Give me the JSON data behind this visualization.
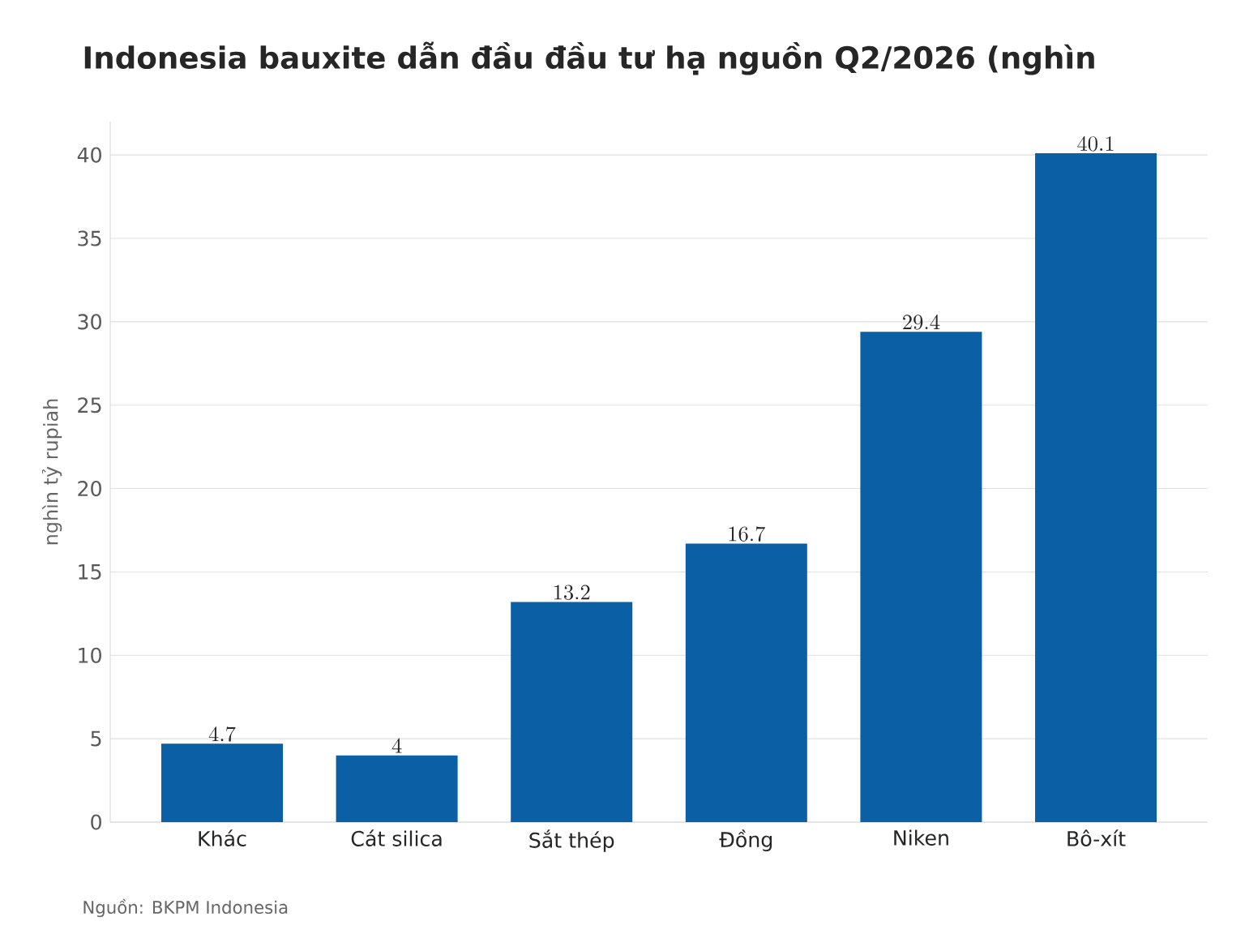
{
  "chart_data": {
    "type": "bar",
    "title": "Indonesia bauxite dẫn đầu đầu tư hạ nguồn Q2/2026 (nghìn",
    "ylabel": "nghìn tỷ rupiah",
    "categories": [
      "Khác",
      "Cát silica",
      "Sắt thép",
      "Đồng",
      "Niken",
      "Bô-xít"
    ],
    "values": [
      4.7,
      4,
      13.2,
      16.7,
      29.4,
      40.1
    ],
    "color": "#0b5fa5",
    "ylim": [
      0,
      42
    ],
    "yticks": [
      0,
      5,
      10,
      15,
      20,
      25,
      30,
      35,
      40
    ],
    "grid": "y",
    "data_labels": true,
    "annotations": [
      "Nguồn: BKPM Indonesia"
    ]
  }
}
